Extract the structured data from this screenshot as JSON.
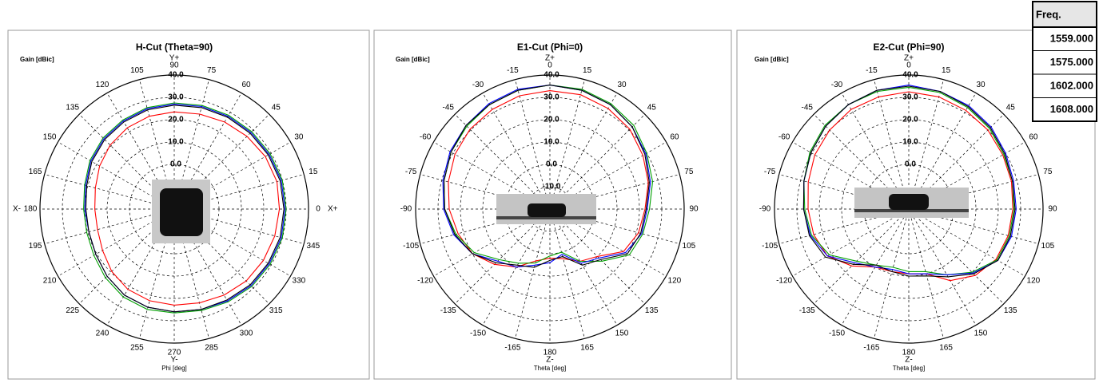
{
  "chart_data": [
    {
      "type": "polar",
      "title": "H-Cut (Theta=90)",
      "r_label": "Gain [dBic]",
      "angle_label": "Phi [deg]",
      "angle_zero": "right",
      "direction": "ccw",
      "axis_markers": [
        {
          "label": "Y+",
          "side": "top",
          "color": "#00a000"
        },
        {
          "label": "Y-",
          "side": "bottom",
          "color": "#00a000"
        },
        {
          "label": "X-",
          "side": "left",
          "color": "#e00000"
        },
        {
          "label": "X+",
          "side": "right",
          "color": "#e00000"
        }
      ],
      "legend_title": "Freq.",
      "x": [
        0,
        15,
        30,
        45,
        60,
        75,
        90,
        105,
        120,
        135,
        150,
        165,
        180,
        195,
        210,
        225,
        240,
        255,
        270,
        285,
        300,
        315,
        330,
        345
      ],
      "xticks": [
        0,
        15,
        30,
        45,
        60,
        75,
        90,
        105,
        120,
        135,
        150,
        165,
        180,
        195,
        210,
        225,
        240,
        255,
        270,
        285,
        300,
        315,
        330,
        345
      ],
      "rlim": [
        -20,
        40
      ],
      "rticks": [
        {
          "value": 0,
          "label": "0.0"
        },
        {
          "value": 10,
          "label": "10.0"
        },
        {
          "value": 20,
          "label": "20.0"
        },
        {
          "value": 30,
          "label": "30.0"
        },
        {
          "value": 40,
          "label": "40.0"
        }
      ],
      "series": [
        {
          "name": "1559.000",
          "color": "#ff0000",
          "values": [
            27,
            27.5,
            27,
            26,
            25,
            24,
            23.5,
            23,
            22,
            20.5,
            18.5,
            16.5,
            15.5,
            15.5,
            17,
            19.5,
            21.5,
            22.5,
            23,
            23.5,
            24.5,
            25.5,
            26,
            26.5
          ]
        },
        {
          "name": "1575.000",
          "color": "#00a000",
          "values": [
            30,
            30,
            29.5,
            29,
            28.5,
            28,
            27.5,
            27,
            26,
            25,
            23.5,
            21.5,
            20.5,
            20.5,
            21.5,
            23.5,
            25.5,
            26.5,
            26.5,
            27,
            28,
            29,
            29.5,
            30
          ]
        },
        {
          "name": "1602.000",
          "color": "#0000ff",
          "values": [
            29.5,
            29.5,
            29,
            28.5,
            28,
            27.5,
            27,
            26.5,
            25.5,
            24.5,
            23,
            21,
            20,
            19.5,
            20.5,
            22.5,
            24.5,
            25.5,
            26,
            26.5,
            27.5,
            28.5,
            29,
            29.5
          ]
        },
        {
          "name": "1608.000",
          "color": "#000000",
          "values": [
            29,
            29,
            28.5,
            28,
            27.5,
            27,
            26.5,
            26,
            25,
            24,
            22.5,
            20.5,
            19.5,
            19.5,
            20.5,
            22.5,
            24.5,
            25.5,
            26,
            26.5,
            27,
            28,
            28.5,
            29
          ]
        }
      ]
    },
    {
      "type": "polar",
      "title": "E1-Cut (Phi=0)",
      "r_label": "Gain [dBic]",
      "angle_label": "Theta [deg]",
      "angle_zero": "top",
      "direction": "cw",
      "axis_markers": [
        {
          "label": "Z+",
          "side": "top",
          "color": "#0000e0"
        },
        {
          "label": "Z-",
          "side": "bottom",
          "color": "#0000e0"
        }
      ],
      "x": [
        -180,
        -165,
        -150,
        -135,
        -120,
        -105,
        -90,
        -75,
        -60,
        -45,
        -30,
        -15,
        0,
        15,
        30,
        45,
        60,
        75,
        90,
        105,
        120,
        135,
        150,
        165
      ],
      "xticks": [
        -165,
        -150,
        -135,
        -120,
        -105,
        -90,
        -75,
        -60,
        -45,
        -30,
        -15,
        0,
        15,
        30,
        45,
        60,
        75,
        90,
        105,
        120,
        135,
        150,
        165,
        180
      ],
      "rlim": [
        -20,
        40
      ],
      "rticks": [
        {
          "value": -10,
          "label": "-10.0"
        },
        {
          "value": 0,
          "label": "0.0"
        },
        {
          "value": 10,
          "label": "10.0"
        },
        {
          "value": 20,
          "label": "20.0"
        },
        {
          "value": 30,
          "label": "30.0"
        },
        {
          "value": 40,
          "label": "40.0"
        }
      ],
      "series": [
        {
          "name": "1559.000",
          "color": "#ff0000",
          "values": [
            2,
            4,
            10,
            15,
            20,
            22.5,
            25,
            27,
            29,
            30.5,
            31.5,
            32.5,
            33,
            33,
            32,
            30.5,
            28,
            25.5,
            22.5,
            21,
            18,
            10,
            7,
            3
          ]
        },
        {
          "name": "1575.000",
          "color": "#00a000",
          "values": [
            1,
            5,
            8,
            12,
            19,
            23.5,
            27,
            29,
            31,
            32.5,
            34,
            35,
            35.5,
            35.5,
            34.5,
            33,
            30,
            27.5,
            24.5,
            23,
            21,
            13,
            7,
            0
          ]
        },
        {
          "name": "1602.000",
          "color": "#0000ff",
          "values": [
            4,
            6,
            10,
            13,
            20,
            24.5,
            27.5,
            29.5,
            31.5,
            33,
            34.5,
            35.5,
            35.5,
            35,
            34,
            32,
            29.5,
            26.5,
            23.5,
            22.5,
            19,
            11,
            8,
            1
          ]
        },
        {
          "name": "1608.000",
          "color": "#000000",
          "values": [
            3,
            7,
            9,
            14,
            20,
            24,
            27,
            29,
            31,
            33,
            34,
            35,
            35.5,
            35,
            34,
            32,
            29,
            26,
            23,
            22,
            20,
            12,
            9,
            2
          ]
        }
      ]
    },
    {
      "type": "polar",
      "title": "E2-Cut (Phi=90)",
      "r_label": "Gain [dBic]",
      "angle_label": "Theta [deg]",
      "angle_zero": "top",
      "direction": "cw",
      "axis_markers": [
        {
          "label": "Z+",
          "side": "top",
          "color": "#0000e0"
        },
        {
          "label": "Z-",
          "side": "bottom",
          "color": "#0000e0"
        }
      ],
      "x": [
        -180,
        -165,
        -150,
        -135,
        -120,
        -105,
        -90,
        -75,
        -60,
        -45,
        -30,
        -15,
        0,
        15,
        30,
        45,
        60,
        75,
        90,
        105,
        120,
        135,
        150,
        165
      ],
      "xticks": [
        -165,
        -150,
        -135,
        -120,
        -105,
        -90,
        -75,
        -60,
        -45,
        -30,
        -15,
        0,
        15,
        30,
        45,
        60,
        75,
        90,
        105,
        120,
        135,
        150,
        165,
        180
      ],
      "rlim": [
        -20,
        40
      ],
      "rticks": [
        {
          "value": 0,
          "label": "0.0"
        },
        {
          "value": 10,
          "label": "10.0"
        },
        {
          "value": 20,
          "label": "20.0"
        },
        {
          "value": 30,
          "label": "30.0"
        },
        {
          "value": 40,
          "label": "40.0"
        }
      ],
      "series": [
        {
          "name": "1559.000",
          "color": "#ff0000",
          "values": [
            9,
            9,
            10,
            16,
            22,
            24,
            25,
            26.5,
            28.5,
            30,
            31.5,
            32,
            32.5,
            32,
            31,
            30,
            28.5,
            27.5,
            26.5,
            26,
            25,
            22,
            17,
            10
          ]
        },
        {
          "name": "1575.000",
          "color": "#00a000",
          "values": [
            8,
            7,
            9,
            13,
            21,
            25,
            26.5,
            28.5,
            31,
            33,
            34,
            34.5,
            34.5,
            34,
            32.5,
            31,
            29,
            28,
            27,
            26.5,
            25.5,
            20,
            14,
            9
          ]
        },
        {
          "name": "1602.000",
          "color": "#0000ff",
          "values": [
            9,
            8,
            10,
            14,
            22,
            25.5,
            27,
            28.5,
            30.5,
            32.5,
            34,
            35,
            35.5,
            34.5,
            33.5,
            32,
            30,
            28.5,
            28,
            27.5,
            26,
            20.5,
            14,
            10
          ]
        },
        {
          "name": "1608.000",
          "color": "#000000",
          "values": [
            10,
            9,
            9,
            15,
            23,
            26,
            27,
            28.5,
            30.5,
            32.5,
            34,
            35,
            35,
            34.5,
            33,
            31.5,
            29.5,
            28,
            27.5,
            27,
            26,
            21,
            15,
            11
          ]
        }
      ]
    }
  ]
}
